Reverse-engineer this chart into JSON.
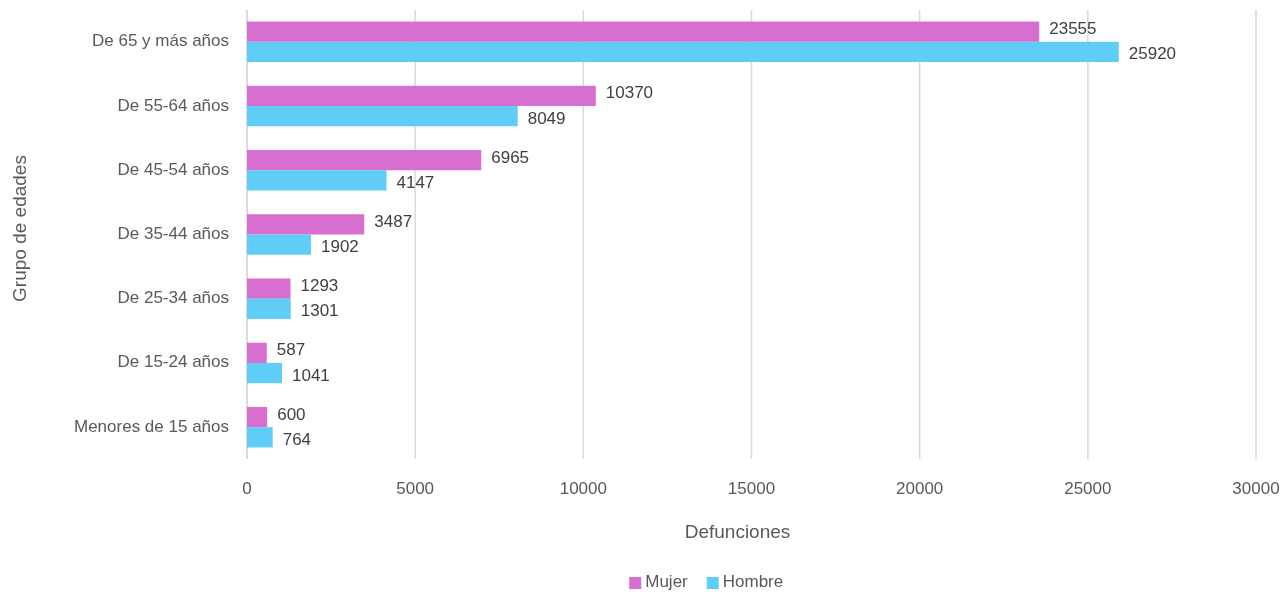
{
  "chart_data": {
    "type": "bar",
    "orientation": "horizontal",
    "xlabel": "Defunciones",
    "ylabel": "Grupo de edades",
    "categories": [
      "De 65 y más años",
      "De 55-64 años",
      "De 45-54 años",
      "De 35-44 años",
      "De 25-34 años",
      "De 15-24 años",
      "Menores de 15 años"
    ],
    "series": [
      {
        "name": "Mujer",
        "color": "#d66fcf",
        "values": [
          23555,
          10370,
          6965,
          3487,
          1293,
          587,
          600
        ]
      },
      {
        "name": "Hombre",
        "color": "#5fcdf5",
        "values": [
          25920,
          8049,
          4147,
          1902,
          1301,
          1041,
          764
        ]
      }
    ],
    "xlim": [
      0,
      30000
    ],
    "xticks": [
      0,
      5000,
      10000,
      15000,
      20000,
      25000,
      30000
    ],
    "grid": "x",
    "legend": "bottom",
    "data_labels": true
  }
}
